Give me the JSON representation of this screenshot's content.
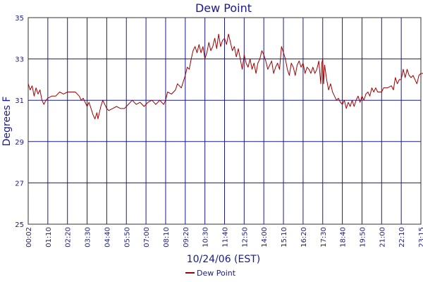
{
  "chart_data": {
    "type": "line",
    "title": "Dew Point",
    "xlabel": "10/24/06 (EST)",
    "ylabel": "Degrees F",
    "ylim": [
      25,
      35
    ],
    "yticks": [
      25,
      27,
      29,
      31,
      33,
      35
    ],
    "xticks": [
      "00:02",
      "01:10",
      "02:20",
      "03:30",
      "04:40",
      "05:50",
      "07:00",
      "08:10",
      "09:20",
      "10:30",
      "11:40",
      "12:50",
      "14:00",
      "15:10",
      "16:20",
      "17:30",
      "18:40",
      "19:50",
      "21:00",
      "22:10",
      "23:15"
    ],
    "grid": true,
    "legend": {
      "position": "bottom-center",
      "entries": [
        "Dew Point"
      ]
    },
    "colors": {
      "series": "#a00000",
      "grid": "#1a1a8c",
      "text": "#1a1a8c"
    },
    "series": [
      {
        "name": "Dew Point",
        "points": [
          [
            0.0,
            31.8
          ],
          [
            0.1,
            31.5
          ],
          [
            0.2,
            31.7
          ],
          [
            0.3,
            31.2
          ],
          [
            0.4,
            31.6
          ],
          [
            0.5,
            31.3
          ],
          [
            0.6,
            31.5
          ],
          [
            0.7,
            31.0
          ],
          [
            0.8,
            30.8
          ],
          [
            0.9,
            31.0
          ],
          [
            1.0,
            31.1
          ],
          [
            1.2,
            31.2
          ],
          [
            1.4,
            31.2
          ],
          [
            1.6,
            31.4
          ],
          [
            1.8,
            31.3
          ],
          [
            2.0,
            31.4
          ],
          [
            2.2,
            31.4
          ],
          [
            2.4,
            31.4
          ],
          [
            2.6,
            31.2
          ],
          [
            2.7,
            31.0
          ],
          [
            2.8,
            31.1
          ],
          [
            2.9,
            30.9
          ],
          [
            3.0,
            30.7
          ],
          [
            3.1,
            30.9
          ],
          [
            3.2,
            30.6
          ],
          [
            3.3,
            30.3
          ],
          [
            3.4,
            30.1
          ],
          [
            3.5,
            30.4
          ],
          [
            3.55,
            30.1
          ],
          [
            3.7,
            30.7
          ],
          [
            3.8,
            31.0
          ],
          [
            3.9,
            30.8
          ],
          [
            4.0,
            30.6
          ],
          [
            4.1,
            30.5
          ],
          [
            4.3,
            30.6
          ],
          [
            4.5,
            30.7
          ],
          [
            4.7,
            30.6
          ],
          [
            4.9,
            30.6
          ],
          [
            5.1,
            30.8
          ],
          [
            5.3,
            31.0
          ],
          [
            5.5,
            30.8
          ],
          [
            5.7,
            30.9
          ],
          [
            5.9,
            30.7
          ],
          [
            6.1,
            30.9
          ],
          [
            6.3,
            31.0
          ],
          [
            6.5,
            30.8
          ],
          [
            6.7,
            31.0
          ],
          [
            6.9,
            30.8
          ],
          [
            7.0,
            31.0
          ],
          [
            7.1,
            31.4
          ],
          [
            7.3,
            31.3
          ],
          [
            7.5,
            31.5
          ],
          [
            7.6,
            31.8
          ],
          [
            7.8,
            31.6
          ],
          [
            7.9,
            31.9
          ],
          [
            8.0,
            32.2
          ],
          [
            8.1,
            32.6
          ],
          [
            8.2,
            32.5
          ],
          [
            8.3,
            33.0
          ],
          [
            8.4,
            33.4
          ],
          [
            8.5,
            33.6
          ],
          [
            8.6,
            33.3
          ],
          [
            8.7,
            33.7
          ],
          [
            8.8,
            33.3
          ],
          [
            8.9,
            33.6
          ],
          [
            9.0,
            33.0
          ],
          [
            9.1,
            33.3
          ],
          [
            9.2,
            33.8
          ],
          [
            9.3,
            33.4
          ],
          [
            9.4,
            33.6
          ],
          [
            9.5,
            34.0
          ],
          [
            9.6,
            33.5
          ],
          [
            9.7,
            34.2
          ],
          [
            9.8,
            33.6
          ],
          [
            9.9,
            33.9
          ],
          [
            10.0,
            34.0
          ],
          [
            10.1,
            33.7
          ],
          [
            10.2,
            34.2
          ],
          [
            10.3,
            33.8
          ],
          [
            10.4,
            33.4
          ],
          [
            10.5,
            33.6
          ],
          [
            10.6,
            33.1
          ],
          [
            10.7,
            33.5
          ],
          [
            10.8,
            33.0
          ],
          [
            10.9,
            32.5
          ],
          [
            11.0,
            33.2
          ],
          [
            11.1,
            32.8
          ],
          [
            11.2,
            32.6
          ],
          [
            11.3,
            33.0
          ],
          [
            11.4,
            32.5
          ],
          [
            11.5,
            32.8
          ],
          [
            11.6,
            32.3
          ],
          [
            11.7,
            32.8
          ],
          [
            11.8,
            33.0
          ],
          [
            11.9,
            33.4
          ],
          [
            12.0,
            33.2
          ],
          [
            12.1,
            32.9
          ],
          [
            12.2,
            32.5
          ],
          [
            12.3,
            32.7
          ],
          [
            12.4,
            32.9
          ],
          [
            12.5,
            32.3
          ],
          [
            12.6,
            32.6
          ],
          [
            12.7,
            32.8
          ],
          [
            12.8,
            32.5
          ],
          [
            12.9,
            33.6
          ],
          [
            13.0,
            33.3
          ],
          [
            13.1,
            33.0
          ],
          [
            13.2,
            32.5
          ],
          [
            13.3,
            32.2
          ],
          [
            13.4,
            32.8
          ],
          [
            13.5,
            32.6
          ],
          [
            13.6,
            32.2
          ],
          [
            13.7,
            32.7
          ],
          [
            13.8,
            32.9
          ],
          [
            13.9,
            32.6
          ],
          [
            14.0,
            32.8
          ],
          [
            14.1,
            32.3
          ],
          [
            14.2,
            32.6
          ],
          [
            14.3,
            32.5
          ],
          [
            14.4,
            32.3
          ],
          [
            14.5,
            32.6
          ],
          [
            14.6,
            32.3
          ],
          [
            14.7,
            32.5
          ],
          [
            14.8,
            32.9
          ],
          [
            14.9,
            31.8
          ],
          [
            14.95,
            32.8
          ],
          [
            15.0,
            33.0
          ],
          [
            15.05,
            31.8
          ],
          [
            15.1,
            32.7
          ],
          [
            15.2,
            32.0
          ],
          [
            15.3,
            31.5
          ],
          [
            15.4,
            31.8
          ],
          [
            15.5,
            31.4
          ],
          [
            15.6,
            31.2
          ],
          [
            15.7,
            31.0
          ],
          [
            15.8,
            31.1
          ],
          [
            15.9,
            30.9
          ],
          [
            16.0,
            30.8
          ],
          [
            16.1,
            31.0
          ],
          [
            16.2,
            30.6
          ],
          [
            16.3,
            30.9
          ],
          [
            16.4,
            30.7
          ],
          [
            16.5,
            31.0
          ],
          [
            16.6,
            30.7
          ],
          [
            16.7,
            31.0
          ],
          [
            16.8,
            31.2
          ],
          [
            16.9,
            30.9
          ],
          [
            17.0,
            31.2
          ],
          [
            17.1,
            31.0
          ],
          [
            17.2,
            31.3
          ],
          [
            17.3,
            31.4
          ],
          [
            17.4,
            31.2
          ],
          [
            17.5,
            31.6
          ],
          [
            17.6,
            31.4
          ],
          [
            17.7,
            31.6
          ],
          [
            17.8,
            31.4
          ],
          [
            17.9,
            31.4
          ],
          [
            18.0,
            31.4
          ],
          [
            18.1,
            31.6
          ],
          [
            18.3,
            31.6
          ],
          [
            18.5,
            31.7
          ],
          [
            18.6,
            31.5
          ],
          [
            18.7,
            32.1
          ],
          [
            18.8,
            31.8
          ],
          [
            18.9,
            32.0
          ],
          [
            19.0,
            32.0
          ],
          [
            19.1,
            32.5
          ],
          [
            19.2,
            32.1
          ],
          [
            19.3,
            32.5
          ],
          [
            19.4,
            32.2
          ],
          [
            19.5,
            32.1
          ],
          [
            19.6,
            32.2
          ],
          [
            19.7,
            32.0
          ],
          [
            19.8,
            31.8
          ],
          [
            19.9,
            32.2
          ],
          [
            20.0,
            32.3
          ],
          [
            20.2,
            32.3
          ],
          [
            20.4,
            32.3
          ],
          [
            20.6,
            32.5
          ],
          [
            20.7,
            32.6
          ],
          [
            20.8,
            32.7
          ],
          [
            20.9,
            32.5
          ],
          [
            21.0,
            32.7
          ],
          [
            21.2,
            32.7
          ],
          [
            21.4,
            32.7
          ],
          [
            21.5,
            32.6
          ],
          [
            21.6,
            32.9
          ],
          [
            21.7,
            32.7
          ],
          [
            21.8,
            32.9
          ],
          [
            21.9,
            32.6
          ],
          [
            22.0,
            33.0
          ],
          [
            22.1,
            33.1
          ],
          [
            22.2,
            32.6
          ],
          [
            22.3,
            32.8
          ],
          [
            22.4,
            32.6
          ],
          [
            22.5,
            32.3
          ],
          [
            22.6,
            32.8
          ],
          [
            22.7,
            32.5
          ],
          [
            22.8,
            32.8
          ],
          [
            22.9,
            32.5
          ],
          [
            23.0,
            32.6
          ],
          [
            23.1,
            32.7
          ],
          [
            23.22,
            32.6
          ]
        ]
      }
    ]
  }
}
